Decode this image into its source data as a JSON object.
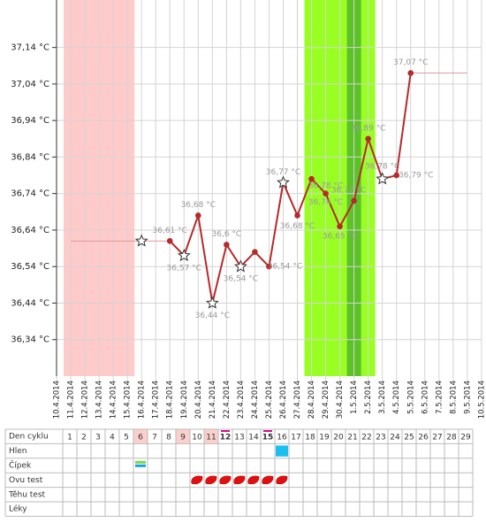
{
  "chart_data": {
    "type": "line",
    "categories": [
      "10.4.2014",
      "11.4.2014",
      "12.4.2014",
      "13.4.2014",
      "14.4.2014",
      "15.4.2014",
      "16.4.2014",
      "17.4.2014",
      "18.4.2014",
      "19.4.2014",
      "20.4.2014",
      "21.4.2014",
      "22.4.2014",
      "23.4.2014",
      "24.4.2014",
      "25.4.2014",
      "26.4.2014",
      "27.4.2014",
      "28.4.2014",
      "29.4.2014",
      "30.4.2014",
      "1.5.2014",
      "2.5.2014",
      "3.5.2014",
      "4.5.2014",
      "5.5.2014",
      "6.5.2014",
      "7.5.2014",
      "8.5.2014",
      "9.5.2014",
      "10.5.2014"
    ],
    "series": [
      {
        "color": "#b52a2a",
        "width": 2,
        "values": [
          null,
          null,
          null,
          null,
          null,
          null,
          null,
          null,
          36.61,
          36.57,
          36.68,
          36.44,
          36.6,
          36.54,
          36.58,
          36.54,
          36.77,
          36.68,
          36.78,
          36.74,
          36.65,
          36.72,
          36.89,
          36.78,
          36.79,
          37.07,
          null,
          null,
          null,
          null,
          null
        ],
        "value_labels": [
          null,
          null,
          null,
          null,
          null,
          null,
          null,
          null,
          "36,61 °C",
          "36,57 °C",
          "36,68 °C",
          "36,44 °C",
          "36,6 °C",
          "36,54 °C",
          null,
          "36,54 °C",
          "36,77 °C",
          "36,68 °C",
          "36,78 °C",
          "36,74 °C",
          "36,65 °C",
          "36,72 °C",
          "36,89 °C",
          "36,78 °C",
          "36,79 °C",
          "37,07 °C",
          null,
          null,
          null,
          null,
          null
        ],
        "markers": [
          null,
          null,
          null,
          null,
          null,
          null,
          null,
          null,
          "dot",
          "star",
          "dot",
          "star",
          "dot",
          "star",
          "dot",
          "dot",
          "star",
          "dot",
          "dot",
          "dot",
          "dot",
          "dot",
          "dot",
          "star",
          "dot",
          "dot",
          null,
          null,
          null,
          null,
          null
        ]
      },
      {
        "color": "#e39a9a",
        "width": 1,
        "values": [
          null,
          36.61,
          36.61,
          36.61,
          36.61,
          36.61,
          36.61,
          36.61,
          36.61,
          null,
          null,
          null,
          null,
          null,
          null,
          null,
          null,
          null,
          null,
          null,
          null,
          null,
          null,
          null,
          null,
          37.07,
          37.07,
          37.07,
          37.07,
          37.07,
          null
        ],
        "markers": [
          null,
          null,
          null,
          null,
          null,
          null,
          "star",
          null,
          null,
          null,
          null,
          null,
          null,
          null,
          null,
          null,
          null,
          null,
          null,
          null,
          null,
          null,
          null,
          null,
          null,
          null,
          null,
          null,
          null,
          null,
          null
        ]
      }
    ],
    "bands": [
      {
        "from": "11.4.2014",
        "to": "15.4.2014",
        "color": "#ffcaca"
      },
      {
        "from": "28.4.2014",
        "to": "2.5.2014",
        "color": "#99ff22"
      },
      {
        "from": "1.5.2014",
        "to": "1.5.2014",
        "color": "#5dc12a"
      }
    ],
    "ylim": [
      36.24,
      37.27
    ],
    "yticks": [
      {
        "value": 37.14,
        "label": "37,14 °C"
      },
      {
        "value": 37.04,
        "label": "37,04 °C"
      },
      {
        "value": 36.94,
        "label": "36,94 °C"
      },
      {
        "value": 36.84,
        "label": "36,84 °C"
      },
      {
        "value": 36.74,
        "label": "36,74 °C"
      },
      {
        "value": 36.64,
        "label": "36,64 °C"
      },
      {
        "value": 36.54,
        "label": "36,54 °C"
      },
      {
        "value": 36.44,
        "label": "36,44 °C"
      },
      {
        "value": 36.34,
        "label": "36,34 °C"
      }
    ],
    "grid": true
  },
  "cycle_table": {
    "row_labels": [
      "Den cyklu",
      "Hlen",
      "Čípek",
      "Ovu test",
      "Těhu test",
      "Léky"
    ],
    "days": [
      1,
      2,
      3,
      4,
      5,
      6,
      7,
      8,
      9,
      10,
      11,
      12,
      13,
      14,
      15,
      16,
      17,
      18,
      19,
      20,
      21,
      22,
      23,
      24,
      25,
      26,
      27,
      28,
      29
    ],
    "highlighted_days": [
      6,
      9,
      11
    ],
    "marked_days": [
      12,
      15
    ],
    "hlen_days": [
      16
    ],
    "cipek_days": [
      6
    ],
    "ovu_test_days": [
      10,
      11,
      12,
      13,
      14,
      15,
      16
    ]
  }
}
